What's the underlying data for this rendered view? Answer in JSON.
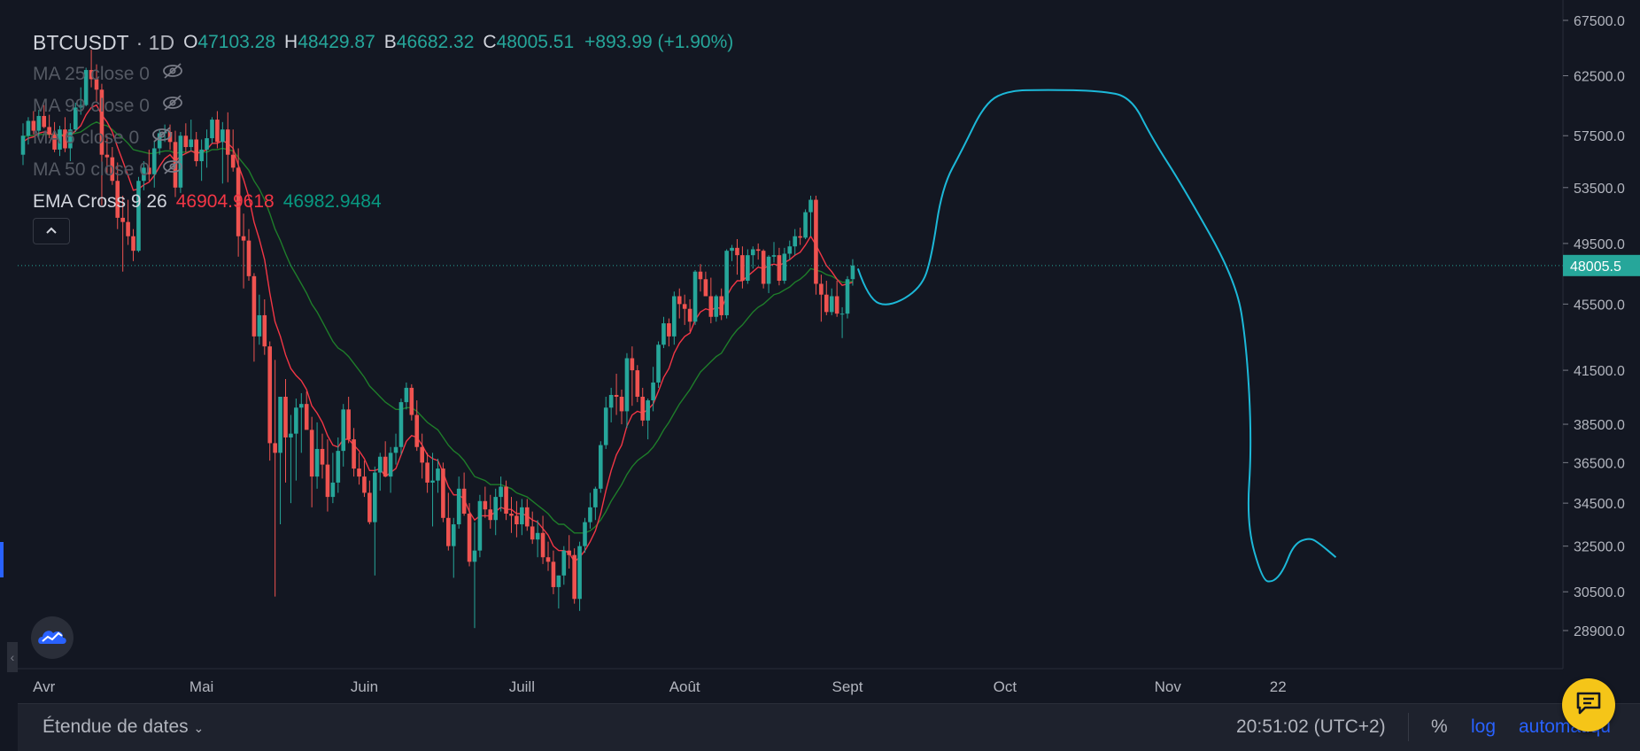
{
  "header": {
    "symbol": "BTCUSDT",
    "interval": "· 1D",
    "open_label": "O",
    "open": "47103.28",
    "high_label": "H",
    "high": "48429.87",
    "low_label": "B",
    "low": "46682.32",
    "close_label": "C",
    "close": "48005.51",
    "change": "+893.99 (+1.90%)"
  },
  "indicators": [
    {
      "label": "MA 25 close 0"
    },
    {
      "label": "MA 99 close 0"
    },
    {
      "label": "MA 6 close 0"
    },
    {
      "label": "MA 50 close 0"
    }
  ],
  "ema": {
    "label": "EMA Cross 9 26",
    "fast_value": "46904.9618",
    "slow_value": "46982.9484"
  },
  "price_tag": "48005.5",
  "bottom_bar": {
    "date_range": "Étendue de dates",
    "clock": "20:51:02 (UTC+2)",
    "percent": "%",
    "log": "log",
    "auto": "automatiqu"
  },
  "colors": {
    "up": "#26a69a",
    "down": "#ef5350",
    "ema_fast": "#f23645",
    "ema_slow": "#1e7d2a",
    "drawing": "#1cb8d8",
    "background": "#131722"
  },
  "chart_data": {
    "type": "candlestick",
    "symbol": "BTCUSDT",
    "interval": "1D",
    "scale": "log",
    "y_ticks": [
      67500,
      62500,
      57500,
      53500,
      49500,
      45500,
      41500,
      38500,
      36500,
      34500,
      32500,
      30500,
      28900
    ],
    "y_tick_labels": [
      "67500.0",
      "62500.0",
      "57500.0",
      "53500.0",
      "49500.0",
      "45500.0",
      "41500.0",
      "38500.0",
      "36500.0",
      "34500.0",
      "32500.0",
      "30500.0",
      "28900.0"
    ],
    "x_ticks": [
      {
        "label": "Avr",
        "date": "2021-04-01"
      },
      {
        "label": "Mai",
        "date": "2021-05-01"
      },
      {
        "label": "Juin",
        "date": "2021-06-01"
      },
      {
        "label": "Juill",
        "date": "2021-07-01"
      },
      {
        "label": "Août",
        "date": "2021-08-01"
      },
      {
        "label": "Sept",
        "date": "2021-09-01"
      },
      {
        "label": "Oct",
        "date": "2021-10-01"
      },
      {
        "label": "Nov",
        "date": "2021-11-01"
      },
      {
        "label": "22",
        "date": "2021-11-22"
      }
    ],
    "first_date": "2021-03-28",
    "last_close": 48005.51,
    "ohlc": [
      [
        56000,
        58500,
        55200,
        57500
      ],
      [
        57500,
        59000,
        56800,
        58700
      ],
      [
        58700,
        59500,
        57600,
        57900
      ],
      [
        57900,
        59600,
        57200,
        59100
      ],
      [
        59100,
        60000,
        58100,
        58200
      ],
      [
        58200,
        59200,
        57300,
        57600
      ],
      [
        57600,
        58600,
        56200,
        56400
      ],
      [
        56400,
        58300,
        55900,
        58000
      ],
      [
        58000,
        59000,
        56200,
        56500
      ],
      [
        56500,
        58500,
        55500,
        58000
      ],
      [
        58000,
        60200,
        57800,
        59800
      ],
      [
        59800,
        61500,
        59200,
        60000
      ],
      [
        60000,
        63200,
        59900,
        63000
      ],
      [
        63000,
        64800,
        61500,
        62200
      ],
      [
        62200,
        63500,
        60300,
        61300
      ],
      [
        61300,
        61800,
        52200,
        56000
      ],
      [
        56000,
        57500,
        54500,
        55800
      ],
      [
        55800,
        56600,
        53700,
        54000
      ],
      [
        54000,
        55400,
        50500,
        51300
      ],
      [
        51300,
        52900,
        47600,
        51000
      ],
      [
        51000,
        52600,
        49400,
        50000
      ],
      [
        50000,
        50500,
        48300,
        49000
      ],
      [
        49000,
        54300,
        48900,
        54000
      ],
      [
        54000,
        55500,
        53300,
        55000
      ],
      [
        55000,
        56400,
        54000,
        54500
      ],
      [
        54500,
        57100,
        53500,
        56500
      ],
      [
        56500,
        58000,
        56000,
        57700
      ],
      [
        57700,
        58400,
        57000,
        57800
      ],
      [
        57800,
        58400,
        56400,
        57000
      ],
      [
        57000,
        57900,
        52800,
        53500
      ],
      [
        53500,
        57800,
        53100,
        57500
      ],
      [
        57500,
        58500,
        56200,
        56600
      ],
      [
        56600,
        58800,
        56300,
        57200
      ],
      [
        57200,
        57800,
        55100,
        55500
      ],
      [
        55500,
        57200,
        54000,
        56400
      ],
      [
        56400,
        58000,
        55000,
        57300
      ],
      [
        57300,
        59000,
        56900,
        58800
      ],
      [
        58800,
        59500,
        56500,
        57000
      ],
      [
        57000,
        58600,
        53800,
        58000
      ],
      [
        58000,
        59400,
        53900,
        56000
      ],
      [
        56000,
        58000,
        54700,
        55000
      ],
      [
        55000,
        56500,
        48600,
        50000
      ],
      [
        50000,
        51600,
        46500,
        49700
      ],
      [
        49700,
        50500,
        47000,
        47300
      ],
      [
        47300,
        47500,
        42000,
        43500
      ],
      [
        43500,
        46100,
        43000,
        44800
      ],
      [
        44800,
        45800,
        42400,
        42900
      ],
      [
        42900,
        43200,
        36600,
        37500
      ],
      [
        37500,
        42100,
        30300,
        37000
      ],
      [
        37000,
        40000,
        33500,
        40000
      ],
      [
        40000,
        41000,
        35500,
        37800
      ],
      [
        37800,
        39000,
        34500,
        38000
      ],
      [
        38000,
        39900,
        35600,
        39400
      ],
      [
        39400,
        40200,
        37000,
        39600
      ],
      [
        39600,
        40300,
        38300,
        38200
      ],
      [
        38200,
        38900,
        34300,
        35800
      ],
      [
        35800,
        38600,
        35200,
        37200
      ],
      [
        37200,
        38000,
        35700,
        36400
      ],
      [
        36400,
        37700,
        34100,
        34800
      ],
      [
        34800,
        37000,
        34500,
        35500
      ],
      [
        35500,
        37800,
        35000,
        37100
      ],
      [
        37100,
        39600,
        36300,
        39300
      ],
      [
        39300,
        40000,
        37500,
        37700
      ],
      [
        37700,
        38300,
        35800,
        36200
      ],
      [
        36200,
        37000,
        35400,
        35800
      ],
      [
        35800,
        36600,
        34800,
        35000
      ],
      [
        35000,
        35600,
        33500,
        33600
      ],
      [
        33600,
        36300,
        31200,
        36000
      ],
      [
        36000,
        37000,
        35100,
        36800
      ],
      [
        36800,
        37600,
        36100,
        35800
      ],
      [
        35800,
        37300,
        35000,
        37000
      ],
      [
        37000,
        38000,
        36400,
        37300
      ],
      [
        37300,
        39900,
        36900,
        39700
      ],
      [
        39700,
        40800,
        39300,
        40500
      ],
      [
        40500,
        40700,
        38700,
        39000
      ],
      [
        39000,
        39800,
        37100,
        37300
      ],
      [
        37300,
        38000,
        35700,
        36500
      ],
      [
        36500,
        37000,
        35000,
        35500
      ],
      [
        35500,
        37000,
        33400,
        35600
      ],
      [
        35600,
        36700,
        35000,
        36200
      ],
      [
        36200,
        36500,
        33600,
        33800
      ],
      [
        33800,
        35000,
        32300,
        32500
      ],
      [
        32500,
        33800,
        31100,
        33500
      ],
      [
        33500,
        35800,
        33300,
        35200
      ],
      [
        35200,
        36000,
        33900,
        34000
      ],
      [
        34000,
        34500,
        31600,
        31800
      ],
      [
        31800,
        33600,
        29000,
        32300
      ],
      [
        32300,
        34900,
        32000,
        34600
      ],
      [
        34600,
        35300,
        33800,
        34200
      ],
      [
        34200,
        34900,
        33300,
        33700
      ],
      [
        33700,
        35200,
        33000,
        34800
      ],
      [
        34800,
        35800,
        34100,
        35300
      ],
      [
        35300,
        35600,
        33700,
        34000
      ],
      [
        34000,
        34800,
        33100,
        33900
      ],
      [
        33900,
        34600,
        32900,
        33500
      ],
      [
        33500,
        34700,
        33000,
        34300
      ],
      [
        34300,
        34700,
        33200,
        33400
      ],
      [
        33400,
        34100,
        32600,
        32800
      ],
      [
        32800,
        33700,
        32000,
        33100
      ],
      [
        33100,
        33900,
        31700,
        32000
      ],
      [
        32000,
        32700,
        31400,
        31800
      ],
      [
        31800,
        32300,
        30400,
        30700
      ],
      [
        30700,
        31200,
        29800,
        31200
      ],
      [
        31200,
        32500,
        30800,
        32300
      ],
      [
        32300,
        33000,
        31500,
        32100
      ],
      [
        32100,
        32400,
        30000,
        30200
      ],
      [
        30200,
        32700,
        29700,
        32500
      ],
      [
        32500,
        33800,
        32200,
        33600
      ],
      [
        33600,
        35000,
        33300,
        34300
      ],
      [
        34300,
        35300,
        33700,
        35200
      ],
      [
        35200,
        37600,
        35000,
        37400
      ],
      [
        37400,
        40000,
        37200,
        39400
      ],
      [
        39400,
        40500,
        38600,
        40100
      ],
      [
        40100,
        41300,
        39000,
        40000
      ],
      [
        40000,
        40400,
        38500,
        39200
      ],
      [
        39200,
        42500,
        38300,
        42200
      ],
      [
        42200,
        42900,
        39500,
        41500
      ],
      [
        41500,
        41800,
        39700,
        40000
      ],
      [
        40000,
        40500,
        38400,
        38700
      ],
      [
        38700,
        39900,
        37700,
        39800
      ],
      [
        39800,
        41700,
        39200,
        40800
      ],
      [
        40800,
        43200,
        40500,
        43000
      ],
      [
        43000,
        44700,
        42800,
        44300
      ],
      [
        44300,
        44600,
        42900,
        43500
      ],
      [
        43500,
        46300,
        43000,
        46000
      ],
      [
        46000,
        46500,
        44600,
        45500
      ],
      [
        45500,
        46100,
        44200,
        45200
      ],
      [
        45200,
        45800,
        43800,
        44400
      ],
      [
        44400,
        47700,
        44200,
        47600
      ],
      [
        47600,
        48100,
        46300,
        47100
      ],
      [
        47100,
        47600,
        46000,
        46000
      ],
      [
        46000,
        47200,
        44300,
        44700
      ],
      [
        44700,
        46100,
        44400,
        46000
      ],
      [
        46000,
        46500,
        44500,
        44800
      ],
      [
        44800,
        49100,
        44600,
        49000
      ],
      [
        49000,
        49400,
        48300,
        49200
      ],
      [
        49200,
        49800,
        47400,
        48700
      ],
      [
        48700,
        49300,
        46500,
        47000
      ],
      [
        47000,
        49100,
        46800,
        48700
      ],
      [
        48700,
        49300,
        47800,
        49100
      ],
      [
        49100,
        49500,
        48400,
        49000
      ],
      [
        49000,
        49100,
        46500,
        46800
      ],
      [
        46800,
        48700,
        46200,
        48600
      ],
      [
        48600,
        49600,
        48200,
        48700
      ],
      [
        48700,
        49200,
        46700,
        47000
      ],
      [
        47000,
        49200,
        46800,
        48800
      ],
      [
        48800,
        49700,
        48400,
        49300
      ],
      [
        49300,
        50500,
        48700,
        50000
      ],
      [
        50000,
        50600,
        49400,
        49900
      ],
      [
        49900,
        51900,
        49800,
        51700
      ],
      [
        51700,
        52900,
        50000,
        52600
      ],
      [
        52600,
        52900,
        46100,
        46800
      ],
      [
        46800,
        47400,
        44400,
        46100
      ],
      [
        46100,
        47000,
        44800,
        45000
      ],
      [
        45000,
        46500,
        44800,
        46000
      ],
      [
        46000,
        47000,
        44700,
        44900
      ],
      [
        44900,
        45300,
        43400,
        44900
      ],
      [
        44900,
        47300,
        44600,
        47100
      ],
      [
        47103.28,
        48429.87,
        46682.32,
        48005.51
      ]
    ],
    "ema9": [
      57000,
      57300,
      57400,
      57700,
      57800,
      57700,
      57500,
      57600,
      57400,
      57500,
      57900,
      58300,
      59200,
      59800,
      60000,
      59200,
      58600,
      57800,
      56600,
      55500,
      54400,
      53300,
      53400,
      53700,
      53900,
      54400,
      55100,
      55700,
      56000,
      55500,
      55900,
      56100,
      56300,
      56100,
      56200,
      56400,
      56900,
      56900,
      57100,
      56900,
      56500,
      55200,
      54100,
      52800,
      51000,
      49800,
      48400,
      46200,
      44400,
      43500,
      42400,
      41600,
      41200,
      40900,
      40400,
      39500,
      39100,
      38600,
      37900,
      37400,
      37300,
      37700,
      37700,
      37400,
      37100,
      36700,
      36100,
      36100,
      36200,
      35800,
      36000,
      36200,
      36900,
      37600,
      37900,
      37800,
      37400,
      36900,
      36700,
      36600,
      36000,
      35300,
      34900,
      34900,
      34700,
      34100,
      33700,
      33900,
      33900,
      33900,
      34100,
      34300,
      34200,
      34200,
      34000,
      34000,
      33900,
      33700,
      33600,
      33300,
      33000,
      32500,
      32300,
      32300,
      32200,
      31800,
      32000,
      32300,
      32700,
      33200,
      34000,
      35100,
      36100,
      36900,
      37400,
      38400,
      39000,
      39200,
      39100,
      39300,
      39600,
      40300,
      41100,
      41600,
      42500,
      43100,
      43500,
      43700,
      44500,
      45000,
      45200,
      45100,
      45300,
      45200,
      46000,
      46600,
      47000,
      47000,
      47300,
      47600,
      47900,
      47800,
      48000,
      48100,
      48000,
      48200,
      48400,
      48700,
      48900,
      49400,
      50000,
      49400,
      48700,
      48000,
      47600,
      47100,
      46700,
      46800,
      46904.96
    ],
    "ema26": [
      57400,
      57500,
      57500,
      57600,
      57600,
      57600,
      57600,
      57600,
      57600,
      57600,
      57700,
      57800,
      58100,
      58400,
      58600,
      58400,
      58300,
      58000,
      57600,
      57300,
      56900,
      56400,
      56300,
      56200,
      56100,
      56100,
      56200,
      56300,
      56300,
      56100,
      56200,
      56200,
      56300,
      56200,
      56200,
      56200,
      56400,
      56400,
      56500,
      56400,
      56300,
      55800,
      55300,
      54800,
      54000,
      53400,
      52600,
      51600,
      50500,
      49700,
      48800,
      48000,
      47400,
      46800,
      46200,
      45500,
      45000,
      44400,
      43800,
      43200,
      42800,
      42600,
      42300,
      41900,
      41500,
      41100,
      40600,
      40300,
      40000,
      39700,
      39500,
      39300,
      39300,
      39400,
      39400,
      39200,
      38900,
      38600,
      38400,
      38200,
      37800,
      37400,
      37100,
      36900,
      36600,
      36200,
      35800,
      35700,
      35600,
      35400,
      35400,
      35400,
      35300,
      35200,
      35000,
      34900,
      34800,
      34600,
      34400,
      34200,
      34000,
      33700,
      33500,
      33500,
      33300,
      33100,
      33100,
      33100,
      33200,
      33400,
      33700,
      34100,
      34600,
      35000,
      35400,
      35900,
      36300,
      36600,
      36800,
      37000,
      37300,
      37700,
      38200,
      38600,
      39100,
      39600,
      40000,
      40400,
      40900,
      41400,
      41700,
      42000,
      42300,
      42500,
      43000,
      43500,
      43900,
      44200,
      44600,
      45000,
      45300,
      45500,
      45800,
      46100,
      46200,
      46400,
      46600,
      46900,
      47100,
      47400,
      47800,
      47700,
      47600,
      47400,
      47300,
      47100,
      46900,
      46900,
      46982.95
    ],
    "drawing_line": [
      [
        0,
        47800
      ],
      [
        2,
        45800
      ],
      [
        6,
        45300
      ],
      [
        12,
        46500
      ],
      [
        14,
        48500
      ],
      [
        16,
        53500
      ],
      [
        20,
        56500
      ],
      [
        24,
        60000
      ],
      [
        28,
        61200
      ],
      [
        36,
        61300
      ],
      [
        46,
        61200
      ],
      [
        52,
        60700
      ],
      [
        56,
        57300
      ],
      [
        62,
        53500
      ],
      [
        72,
        47000
      ],
      [
        74,
        43000
      ],
      [
        75,
        37500
      ],
      [
        74,
        33500
      ],
      [
        77,
        31000
      ],
      [
        79,
        30900
      ],
      [
        81,
        31400
      ],
      [
        83,
        32600
      ],
      [
        86,
        32900
      ],
      [
        88,
        32600
      ],
      [
        91,
        32000
      ]
    ],
    "drawing_offset_days": 1
  }
}
